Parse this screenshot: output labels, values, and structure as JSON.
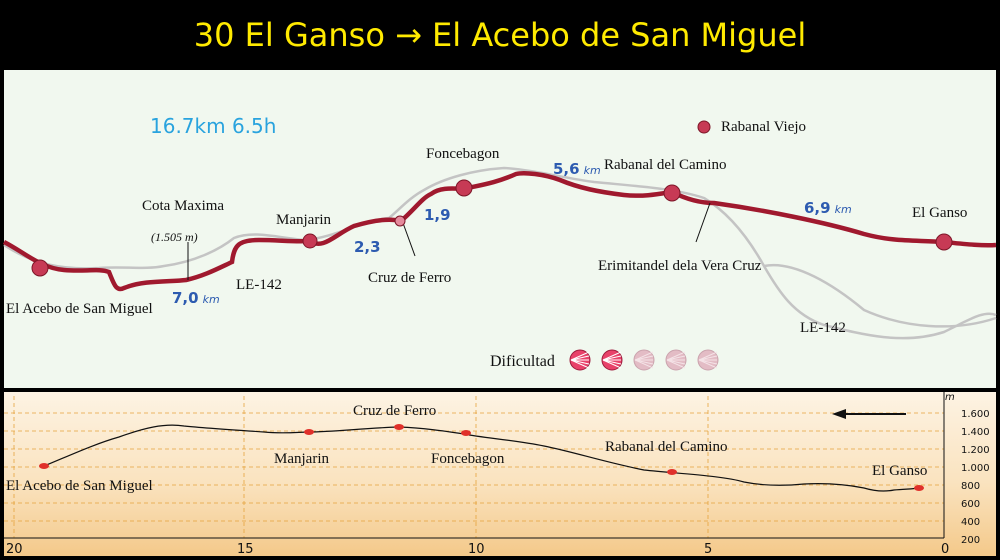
{
  "title": "30 El Ganso → El Acebo de San Miguel",
  "stats": "16.7km 6.5h",
  "map": {
    "places": {
      "acebo": "El Acebo de San Miguel",
      "cota": "Cota Maxima",
      "cota_alt": "(1.505 m)",
      "manjarin": "Manjarin",
      "cruz": "Cruz de Ferro",
      "foncebagon": "Foncebagon",
      "rabanal_viejo": "Rabanal Viejo",
      "rabanal": "Rabanal del Camino",
      "ermita": "Erimitandel dela Vera Cruz",
      "ganso": "El Ganso"
    },
    "roads": {
      "le142_a": "LE-142",
      "le142_b": "LE-142"
    },
    "distances": [
      {
        "value": "7,0",
        "unit": "km"
      },
      {
        "value": "2,3",
        "unit": ""
      },
      {
        "value": "1,9",
        "unit": ""
      },
      {
        "value": "5,6",
        "unit": "km"
      },
      {
        "value": "6,9",
        "unit": "km"
      }
    ],
    "difficulty": {
      "label": "Dificultad",
      "level": 2,
      "max": 5
    },
    "colors": {
      "route": "#a0192e",
      "road": "#c4c4c4",
      "km": "#2d5bb0",
      "stats": "#29a3de",
      "marker": "#c73a55"
    }
  },
  "profile": {
    "unit": "m",
    "y_ticks": [
      "1.600",
      "1.400",
      "1.200",
      "1.000",
      "800",
      "600",
      "400",
      "200"
    ],
    "x_ticks": [
      "20",
      "15",
      "10",
      "5",
      "0"
    ],
    "stops": {
      "acebo": "El Acebo de San Miguel",
      "manjarin": "Manjarin",
      "cruz": "Cruz de Ferro",
      "foncebagon": "Foncebagon",
      "rabanal": "Rabanal del Camino",
      "ganso": "El Ganso"
    },
    "colors": {
      "marker": "#e0302a",
      "gridline": "#e5a33d"
    }
  }
}
